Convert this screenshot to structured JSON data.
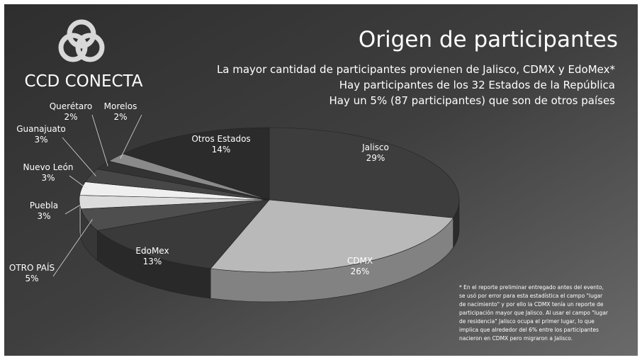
{
  "chart_data": {
    "type": "pie",
    "brand": "CCD CONECTA",
    "title": "Origen de participantes",
    "subtitle": [
      "La mayor cantidad de participantes provienen de Jalisco, CDMX y EdoMex*",
      "Hay participantes de los 32 Estados de la República",
      "Hay un 5% (87 participantes) que son de otros países"
    ],
    "categories": [
      "Jalisco",
      "CDMX",
      "EdoMex",
      "OTRO PAÍS",
      "Puebla",
      "Nuevo León",
      "Guanajuato",
      "Querétaro",
      "Morelos",
      "Otros Estados"
    ],
    "values": [
      29,
      26,
      13,
      5,
      3,
      3,
      3,
      2,
      2,
      14
    ],
    "value_labels": [
      "29%",
      "26%",
      "13%",
      "5%",
      "3%",
      "3%",
      "3%",
      "2%",
      "2%",
      "14%"
    ],
    "colors": [
      "#3d3d3d",
      "#b9b9b9",
      "#3a3a3a",
      "#4e4e4e",
      "#dcdcdc",
      "#efefef",
      "#474747",
      "#333333",
      "#8a8a8a",
      "#2b2b2b"
    ],
    "annotations": [
      "* En el reporte preliminar entregado antes del evento,",
      "se usó por error para esta estadística el campo \"lugar",
      "de nacimiento\" y por ello la CDMX tenía un reporte de",
      "participación mayor que Jalisco. Al usar el campo \"lugar",
      "de residencia\" Jalisco ocupa el primer lugar, lo que",
      "implica que alrededor del 6% entre los participantes",
      "nacieron en CDMX pero migraron a Jalisco."
    ]
  }
}
